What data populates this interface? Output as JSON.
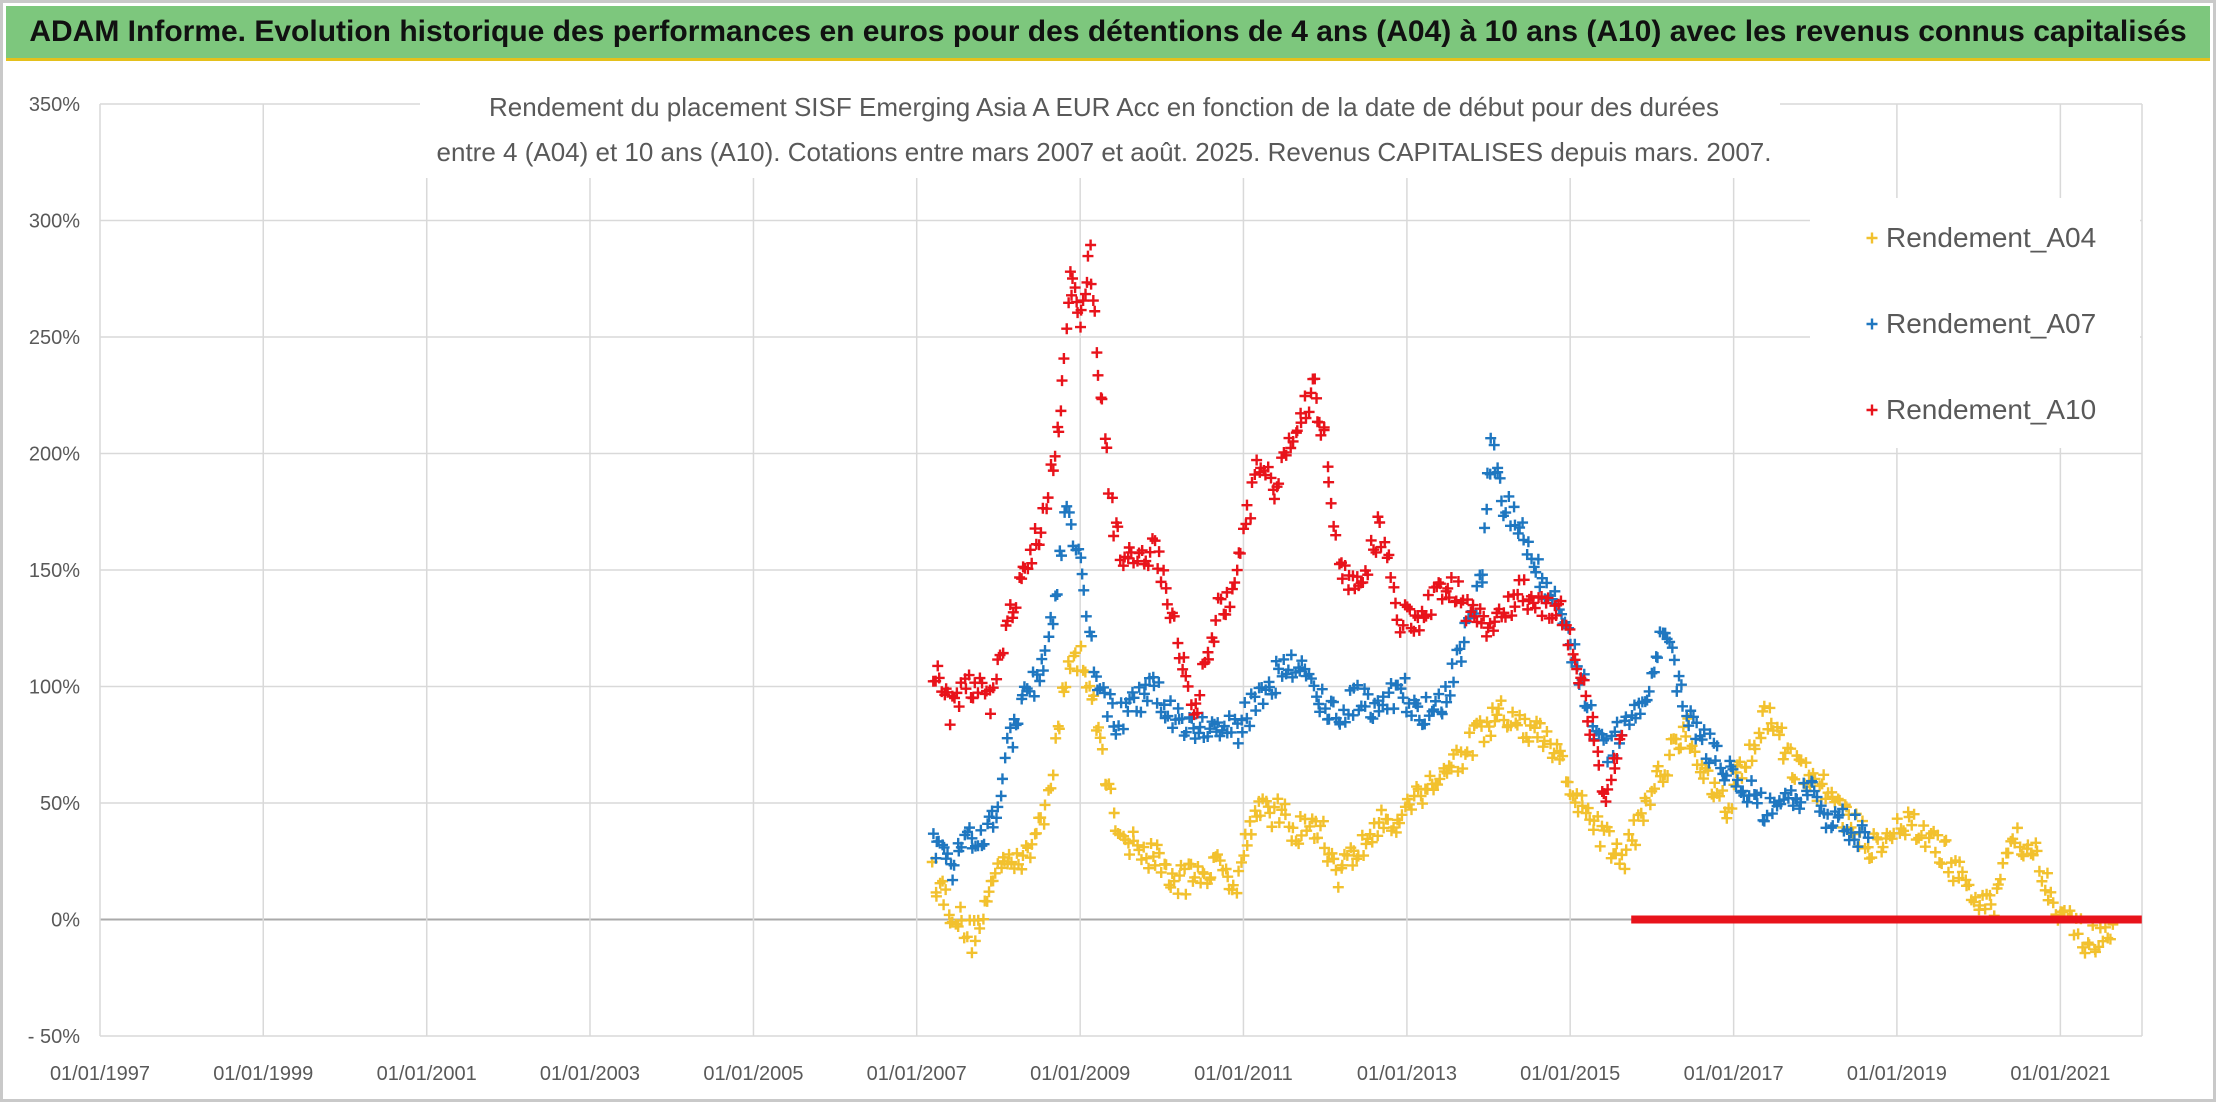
{
  "banner": {
    "title": "ADAM Informe. Evolution historique des performances en euros pour des détentions de 4 ans (A04) à 10 ans (A10) avec les revenus connus capitalisés"
  },
  "chart_data": {
    "type": "scatter",
    "title_line1": "Rendement du placement SISF Emerging Asia A EUR Acc en fonction de la date de début pour des durées",
    "title_line2": "entre 4 (A04) et 10 ans (A10). Cotations entre mars 2007 et août. 2025. Revenus CAPITALISES depuis mars. 2007.",
    "xlabel": "",
    "ylabel": "",
    "x_range": [
      "1997-01-01",
      "2022-01-01"
    ],
    "ylim": [
      -50,
      350
    ],
    "y_ticks": [
      -50,
      0,
      50,
      100,
      150,
      200,
      250,
      300,
      350
    ],
    "y_tick_labels": [
      "- 50%",
      "0%",
      "50%",
      "100%",
      "150%",
      "200%",
      "250%",
      "300%",
      "350%"
    ],
    "x_tick_labels": [
      "01/01/1997",
      "01/01/1999",
      "01/01/2001",
      "01/01/2003",
      "01/01/2005",
      "01/01/2007",
      "01/01/2009",
      "01/01/2011",
      "01/01/2013",
      "01/01/2015",
      "01/01/2017",
      "01/01/2019",
      "01/01/2021"
    ],
    "grid": true,
    "legend_position": "top-right",
    "marker": "+",
    "series": [
      {
        "name": "Rendement_A04",
        "color": "#f2c12e",
        "points": [
          [
            "2007-03-15",
            20
          ],
          [
            "2007-06-01",
            5
          ],
          [
            "2007-09-01",
            -8
          ],
          [
            "2007-11-01",
            5
          ],
          [
            "2008-02-01",
            30
          ],
          [
            "2008-05-01",
            25
          ],
          [
            "2008-08-01",
            50
          ],
          [
            "2008-11-01",
            105
          ],
          [
            "2009-01-01",
            115
          ],
          [
            "2009-03-01",
            90
          ],
          [
            "2009-06-01",
            45
          ],
          [
            "2009-09-01",
            30
          ],
          [
            "2009-12-01",
            28
          ],
          [
            "2010-03-01",
            15
          ],
          [
            "2010-06-01",
            20
          ],
          [
            "2010-09-01",
            22
          ],
          [
            "2010-12-01",
            18
          ],
          [
            "2011-03-01",
            50
          ],
          [
            "2011-06-01",
            45
          ],
          [
            "2011-09-01",
            38
          ],
          [
            "2011-12-01",
            40
          ],
          [
            "2012-03-01",
            20
          ],
          [
            "2012-06-01",
            30
          ],
          [
            "2012-09-01",
            40
          ],
          [
            "2012-12-01",
            45
          ],
          [
            "2013-03-01",
            55
          ],
          [
            "2013-06-01",
            62
          ],
          [
            "2013-09-01",
            70
          ],
          [
            "2013-12-01",
            80
          ],
          [
            "2014-03-01",
            88
          ],
          [
            "2014-06-01",
            82
          ],
          [
            "2014-09-01",
            78
          ],
          [
            "2014-12-01",
            65
          ],
          [
            "2015-03-01",
            45
          ],
          [
            "2015-06-01",
            35
          ],
          [
            "2015-09-01",
            25
          ],
          [
            "2015-12-01",
            50
          ],
          [
            "2016-03-01",
            65
          ],
          [
            "2016-06-01",
            85
          ],
          [
            "2016-09-01",
            60
          ],
          [
            "2016-12-01",
            50
          ],
          [
            "2017-03-01",
            70
          ],
          [
            "2017-06-01",
            88
          ],
          [
            "2017-09-01",
            70
          ],
          [
            "2017-12-01",
            60
          ],
          [
            "2018-03-01",
            55
          ],
          [
            "2018-06-01",
            42
          ],
          [
            "2018-09-01",
            32
          ],
          [
            "2018-12-01",
            38
          ],
          [
            "2019-03-01",
            40
          ],
          [
            "2019-06-01",
            35
          ],
          [
            "2019-09-01",
            25
          ],
          [
            "2019-12-01",
            10
          ],
          [
            "2020-03-01",
            3
          ],
          [
            "2020-06-01",
            38
          ],
          [
            "2020-09-01",
            30
          ],
          [
            "2020-12-01",
            10
          ],
          [
            "2021-03-01",
            -5
          ],
          [
            "2021-06-01",
            -10
          ],
          [
            "2021-09-01",
            -8
          ]
        ]
      },
      {
        "name": "Rendement_A07",
        "color": "#1f77c0",
        "points": [
          [
            "2007-03-15",
            30
          ],
          [
            "2007-06-01",
            22
          ],
          [
            "2007-09-01",
            35
          ],
          [
            "2007-12-01",
            40
          ],
          [
            "2008-02-01",
            70
          ],
          [
            "2008-05-01",
            95
          ],
          [
            "2008-08-01",
            110
          ],
          [
            "2008-11-01",
            175
          ],
          [
            "2009-01-01",
            150
          ],
          [
            "2009-03-01",
            110
          ],
          [
            "2009-06-01",
            85
          ],
          [
            "2009-09-01",
            92
          ],
          [
            "2009-12-01",
            98
          ],
          [
            "2010-03-01",
            88
          ],
          [
            "2010-06-01",
            82
          ],
          [
            "2010-09-01",
            82
          ],
          [
            "2010-12-01",
            80
          ],
          [
            "2011-03-01",
            95
          ],
          [
            "2011-06-01",
            105
          ],
          [
            "2011-09-01",
            110
          ],
          [
            "2011-12-01",
            95
          ],
          [
            "2012-03-01",
            88
          ],
          [
            "2012-06-01",
            95
          ],
          [
            "2012-09-01",
            92
          ],
          [
            "2012-12-01",
            100
          ],
          [
            "2013-03-01",
            88
          ],
          [
            "2013-06-01",
            90
          ],
          [
            "2013-09-01",
            115
          ],
          [
            "2013-12-01",
            145
          ],
          [
            "2014-01-15",
            205
          ],
          [
            "2014-03-01",
            180
          ],
          [
            "2014-06-01",
            165
          ],
          [
            "2014-09-01",
            145
          ],
          [
            "2014-12-01",
            130
          ],
          [
            "2015-03-01",
            100
          ],
          [
            "2015-06-01",
            70
          ],
          [
            "2015-09-01",
            85
          ],
          [
            "2015-12-01",
            95
          ],
          [
            "2016-03-01",
            125
          ],
          [
            "2016-06-01",
            88
          ],
          [
            "2016-09-01",
            75
          ],
          [
            "2016-12-01",
            65
          ],
          [
            "2017-03-01",
            55
          ],
          [
            "2017-06-01",
            45
          ],
          [
            "2017-09-01",
            48
          ],
          [
            "2017-12-01",
            55
          ],
          [
            "2018-03-01",
            45
          ],
          [
            "2018-06-01",
            40
          ],
          [
            "2018-09-01",
            35
          ]
        ]
      },
      {
        "name": "Rendement_A10",
        "color": "#e8131b",
        "points": [
          [
            "2007-03-15",
            108
          ],
          [
            "2007-06-01",
            90
          ],
          [
            "2007-09-01",
            100
          ],
          [
            "2007-12-01",
            95
          ],
          [
            "2008-02-01",
            125
          ],
          [
            "2008-05-01",
            150
          ],
          [
            "2008-08-01",
            175
          ],
          [
            "2008-10-01",
            215
          ],
          [
            "2008-11-15",
            275
          ],
          [
            "2009-01-01",
            255
          ],
          [
            "2009-02-15",
            285
          ],
          [
            "2009-04-01",
            230
          ],
          [
            "2009-06-01",
            165
          ],
          [
            "2009-09-01",
            150
          ],
          [
            "2009-12-01",
            160
          ],
          [
            "2010-03-01",
            125
          ],
          [
            "2010-06-01",
            90
          ],
          [
            "2010-09-01",
            130
          ],
          [
            "2010-12-01",
            145
          ],
          [
            "2011-03-01",
            195
          ],
          [
            "2011-06-01",
            185
          ],
          [
            "2011-09-01",
            215
          ],
          [
            "2011-11-15",
            228
          ],
          [
            "2012-01-01",
            205
          ],
          [
            "2012-03-01",
            155
          ],
          [
            "2012-06-01",
            140
          ],
          [
            "2012-09-01",
            170
          ],
          [
            "2012-12-01",
            130
          ],
          [
            "2013-03-01",
            125
          ],
          [
            "2013-06-01",
            145
          ],
          [
            "2013-09-01",
            138
          ],
          [
            "2013-12-01",
            125
          ],
          [
            "2014-03-01",
            130
          ],
          [
            "2014-06-01",
            140
          ],
          [
            "2014-09-01",
            135
          ],
          [
            "2014-12-01",
            130
          ],
          [
            "2015-03-01",
            100
          ],
          [
            "2015-06-01",
            55
          ],
          [
            "2015-09-01",
            75
          ]
        ],
        "zero_segment": [
          "2015-10-01",
          "2021-12-31"
        ]
      }
    ]
  }
}
